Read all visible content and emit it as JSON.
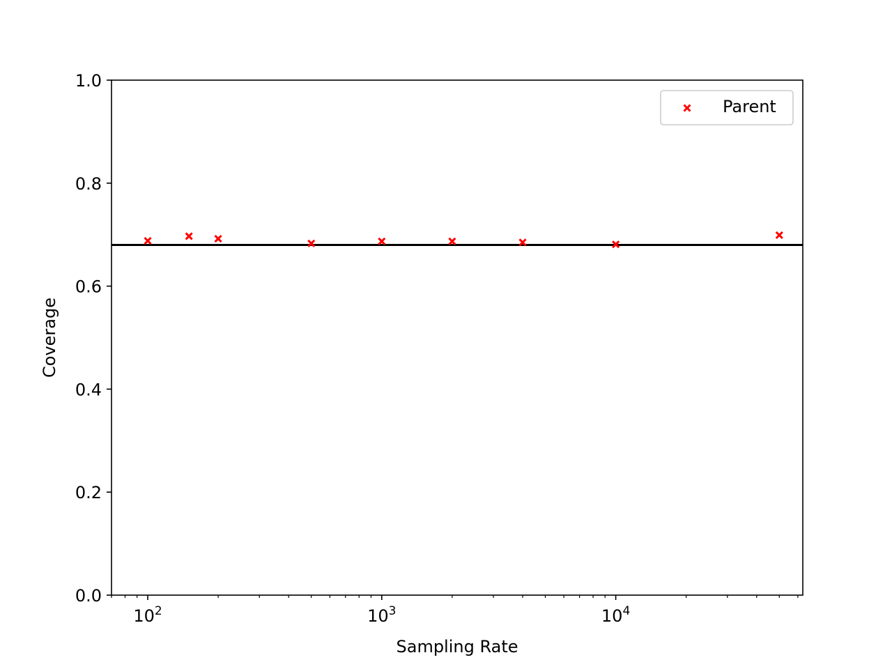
{
  "chart_data": {
    "type": "scatter",
    "title": "",
    "xlabel": "Sampling Rate",
    "ylabel": "Coverage",
    "xscale": "log",
    "xlim": [
      70,
      63000
    ],
    "ylim": [
      0.0,
      1.0
    ],
    "grid": false,
    "legend_position": "top-right",
    "x_ticks": [
      {
        "value": 100,
        "base": "10",
        "exp": "2"
      },
      {
        "value": 1000,
        "base": "10",
        "exp": "3"
      },
      {
        "value": 10000,
        "base": "10",
        "exp": "4"
      }
    ],
    "y_ticks": [
      "0.0",
      "0.2",
      "0.4",
      "0.6",
      "0.8",
      "1.0"
    ],
    "series": [
      {
        "name": "Parent",
        "color": "#ff0000",
        "marker": "x",
        "x": [
          100,
          150,
          200,
          500,
          1000,
          2000,
          4000,
          10000,
          50000
        ],
        "y": [
          0.688,
          0.697,
          0.692,
          0.683,
          0.687,
          0.687,
          0.685,
          0.681,
          0.699
        ]
      }
    ],
    "reference_line": {
      "y": 0.68,
      "color": "#000000"
    }
  }
}
